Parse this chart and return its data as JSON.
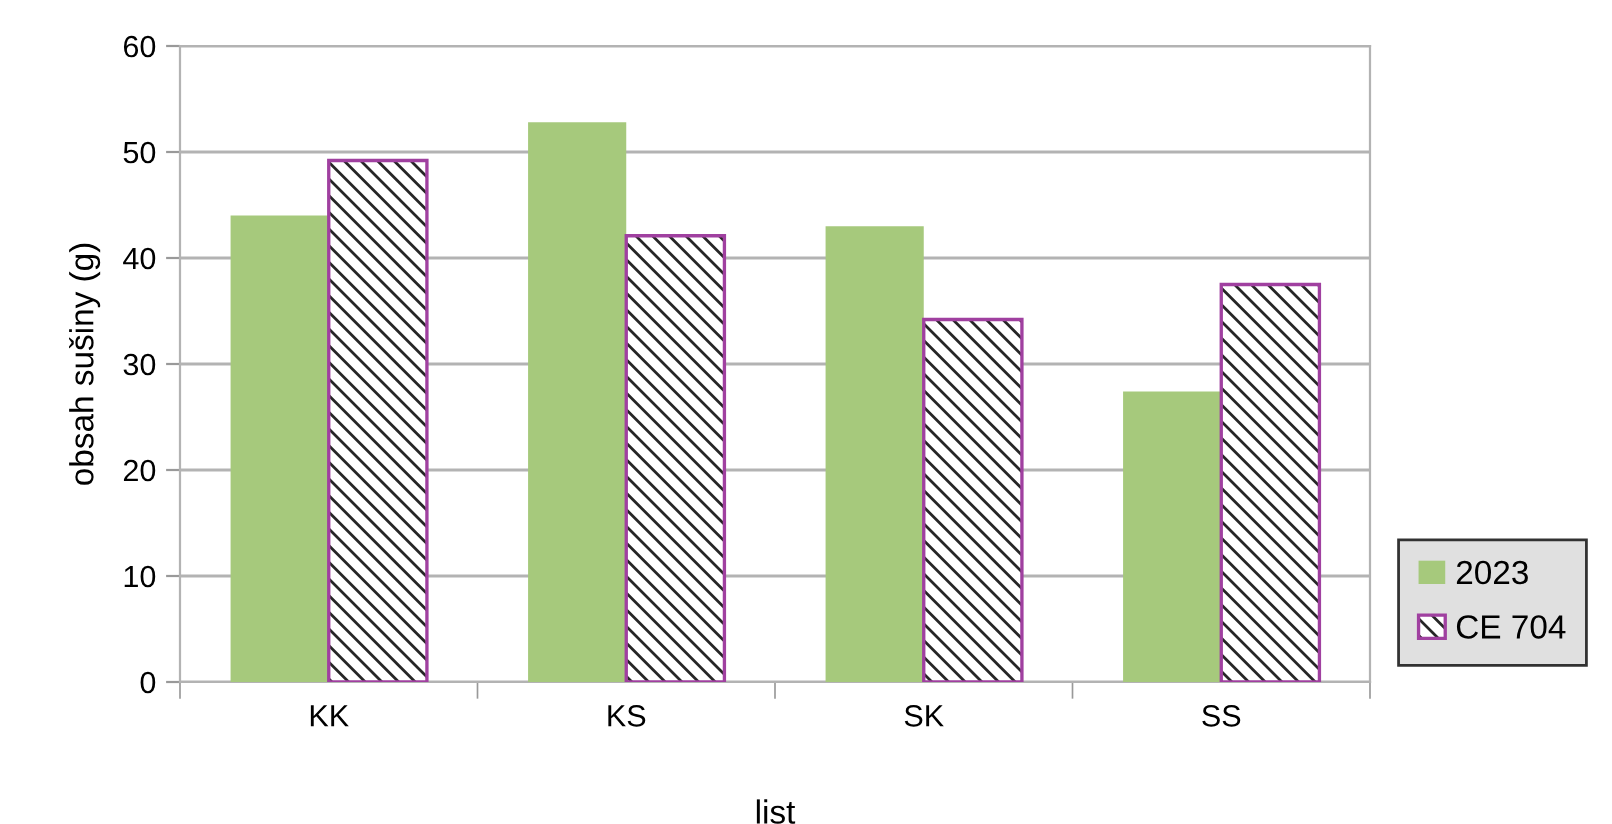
{
  "chart_data": {
    "type": "bar",
    "xlabel": "list",
    "ylabel": "obsah sušiny (g)",
    "categories": [
      "KK",
      "KS",
      "SK",
      "SS"
    ],
    "series": [
      {
        "name": "2023",
        "color": "#a6c97c",
        "values": [
          44.0,
          52.8,
          43.0,
          27.4
        ]
      },
      {
        "name": "CE 704",
        "color": "#a040a0",
        "values": [
          49.2,
          42.1,
          34.2,
          37.5
        ]
      }
    ],
    "ylim": [
      0,
      60
    ],
    "yticks": [
      0,
      10,
      20,
      30,
      40,
      50,
      60
    ],
    "grid": "y",
    "legend": "bottom right"
  }
}
